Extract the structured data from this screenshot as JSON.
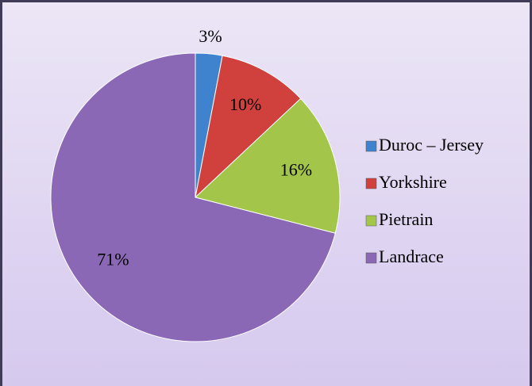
{
  "chart_data": {
    "type": "pie",
    "categories": [
      "Duroc – Jersey",
      "Yorkshire",
      "Pietrain",
      "Landrace"
    ],
    "values": [
      3,
      10,
      16,
      71
    ],
    "value_labels": [
      "3%",
      "10%",
      "16%",
      "71%"
    ],
    "colors": [
      "#3f83cf",
      "#d0403c",
      "#a3c64a",
      "#8a68b6"
    ],
    "legend": "right"
  }
}
